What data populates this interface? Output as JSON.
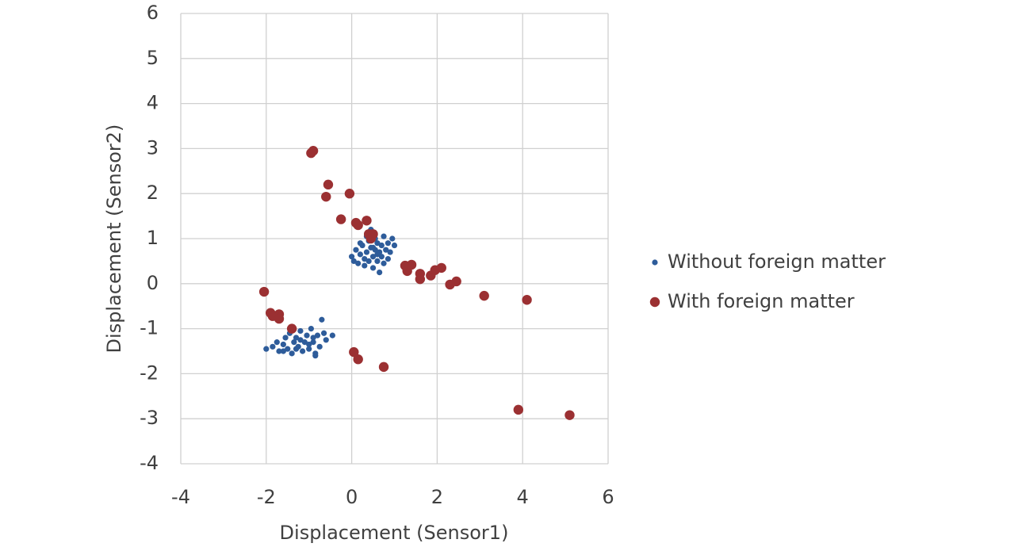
{
  "chart_data": {
    "type": "scatter",
    "xlabel": "Displacement (Sensor1)",
    "ylabel": "Displacement (Sensor2)",
    "xlim": [
      -4,
      6
    ],
    "xticks": [
      -4,
      -2,
      0,
      2,
      4,
      6
    ],
    "ylim": [
      -4,
      6
    ],
    "yticks": [
      -4,
      -3,
      -2,
      -1,
      0,
      1,
      2,
      3,
      4,
      5,
      6
    ],
    "grid": true,
    "legend": "right",
    "series": [
      {
        "name": "Without foreign matter",
        "color": "#2e5c9a",
        "x": [
          0.0,
          0.05,
          0.1,
          0.15,
          0.2,
          0.25,
          0.3,
          0.3,
          0.35,
          0.4,
          0.4,
          0.45,
          0.5,
          0.5,
          0.55,
          0.55,
          0.6,
          0.6,
          0.65,
          0.65,
          0.7,
          0.7,
          0.75,
          0.75,
          0.8,
          0.85,
          0.85,
          0.9,
          0.95,
          1.0,
          0.45,
          0.35,
          0.2,
          0.6,
          0.5,
          -2.0,
          -1.85,
          -1.75,
          -1.7,
          -1.6,
          -1.55,
          -1.5,
          -1.45,
          -1.4,
          -1.35,
          -1.3,
          -1.25,
          -1.2,
          -1.15,
          -1.1,
          -1.05,
          -1.0,
          -0.95,
          -0.9,
          -0.85,
          -0.8,
          -0.75,
          -0.7,
          -0.65,
          -0.6,
          -0.45,
          -1.2,
          -1.0,
          -1.3,
          -0.9,
          -1.6,
          -0.85
        ],
        "values": [
          0.6,
          0.5,
          0.75,
          0.45,
          0.65,
          0.85,
          0.55,
          0.4,
          0.7,
          0.95,
          0.5,
          0.8,
          0.6,
          0.35,
          0.75,
          1.0,
          0.9,
          0.5,
          0.7,
          0.25,
          0.85,
          0.6,
          1.05,
          0.45,
          0.75,
          0.9,
          0.55,
          0.7,
          1.0,
          0.85,
          1.2,
          1.05,
          0.9,
          0.65,
          0.8,
          -1.45,
          -1.4,
          -1.3,
          -1.5,
          -1.35,
          -1.2,
          -1.45,
          -1.1,
          -1.55,
          -1.3,
          -1.2,
          -1.4,
          -1.05,
          -1.5,
          -1.3,
          -1.15,
          -1.45,
          -1.0,
          -1.3,
          -1.55,
          -1.15,
          -1.4,
          -0.8,
          -1.1,
          -1.25,
          -1.15,
          -1.25,
          -1.35,
          -1.45,
          -1.2,
          -1.5,
          -1.6
        ]
      },
      {
        "name": "With foreign matter",
        "color": "#9b3032",
        "x": [
          -2.05,
          -1.9,
          -1.85,
          -1.7,
          -1.7,
          -1.4,
          -0.95,
          -0.9,
          -0.55,
          -0.6,
          -0.05,
          -0.25,
          0.1,
          0.15,
          0.35,
          0.4,
          0.45,
          0.5,
          1.25,
          1.3,
          1.4,
          1.6,
          1.6,
          1.85,
          1.95,
          2.1,
          2.3,
          2.45,
          3.1,
          4.1,
          0.05,
          0.15,
          0.75,
          3.9,
          5.1
        ],
        "values": [
          -0.18,
          -0.65,
          -0.72,
          -0.68,
          -0.78,
          -1.0,
          2.9,
          2.95,
          2.2,
          1.93,
          2.0,
          1.43,
          1.35,
          1.3,
          1.4,
          1.1,
          1.0,
          1.1,
          0.4,
          0.28,
          0.42,
          0.22,
          0.1,
          0.18,
          0.3,
          0.35,
          -0.02,
          0.05,
          -0.27,
          -0.36,
          -1.52,
          -1.68,
          -1.85,
          -2.8,
          -2.92
        ]
      }
    ]
  }
}
